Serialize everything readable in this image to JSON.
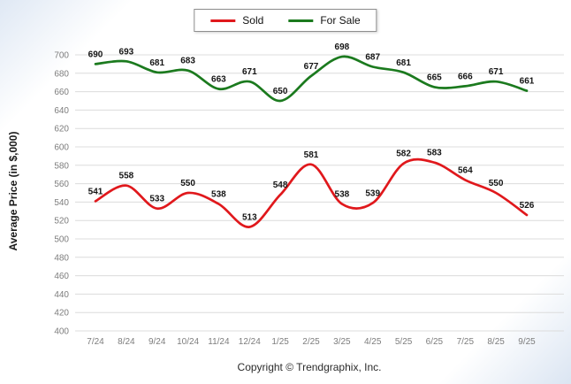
{
  "legend": {
    "items": [
      {
        "label": "Sold"
      },
      {
        "label": "For Sale"
      }
    ]
  },
  "footer": "Copyright © Trendgraphix, Inc.",
  "chart_data": {
    "type": "line",
    "title": "",
    "xlabel": "",
    "ylabel": "Average Price (in $,000)",
    "line_style": "smooth",
    "grid": "horizontal-only",
    "legend_position": "top-center",
    "ylim": [
      400,
      700
    ],
    "ytick_step": 20,
    "categories": [
      "7/24",
      "8/24",
      "9/24",
      "10/24",
      "11/24",
      "12/24",
      "1/25",
      "2/25",
      "3/25",
      "4/25",
      "5/25",
      "6/25",
      "7/25",
      "8/25",
      "9/25"
    ],
    "series": [
      {
        "name": "Sold",
        "color": "#e0181c",
        "values": [
          541,
          558,
          533,
          550,
          538,
          513,
          548,
          581,
          538,
          539,
          582,
          583,
          564,
          550,
          526
        ]
      },
      {
        "name": "For Sale",
        "color": "#1b7a1e",
        "values": [
          690,
          693,
          681,
          683,
          663,
          671,
          650,
          677,
          698,
          687,
          681,
          665,
          666,
          671,
          661
        ]
      }
    ],
    "styles": {
      "gridline_color": "#dcdcdc",
      "tick_label_color": "#7d7d7d",
      "data_label_color": "#141414"
    }
  }
}
